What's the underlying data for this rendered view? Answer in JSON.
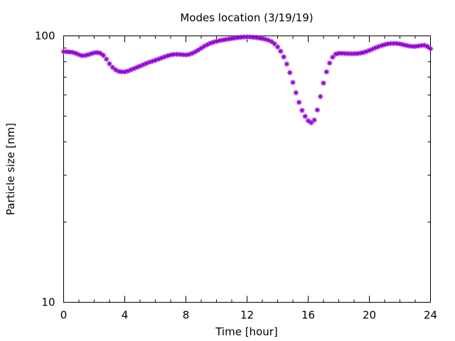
{
  "chart_data": {
    "type": "scatter",
    "title": "Modes location (3/19/19)",
    "xlabel": "Time [hour]",
    "ylabel": "Particle size [nm]",
    "xlim": [
      0,
      24
    ],
    "ylim": [
      10,
      100
    ],
    "yscale": "log",
    "x_ticks": [
      0,
      4,
      8,
      12,
      16,
      20,
      24
    ],
    "x_tick_labels": [
      "0",
      "4",
      "8",
      "12",
      "16",
      "20",
      "24"
    ],
    "y_ticks": [
      10,
      100
    ],
    "y_tick_labels": [
      "10",
      "100"
    ],
    "grid": false,
    "marker_color": "#9400d3",
    "marker": "asterisk",
    "series": [
      {
        "x": [
          0.0,
          0.2,
          0.4,
          0.6,
          0.8,
          1.0,
          1.2,
          1.4,
          1.6,
          1.8,
          2.0,
          2.2,
          2.4,
          2.6,
          2.8,
          3.0,
          3.2,
          3.4,
          3.6,
          3.8,
          4.0,
          4.2,
          4.4,
          4.6,
          4.8,
          5.0,
          5.2,
          5.4,
          5.6,
          5.8,
          6.0,
          6.2,
          6.4,
          6.6,
          6.8,
          7.0,
          7.2,
          7.4,
          7.6,
          7.8,
          8.0,
          8.2,
          8.4,
          8.6,
          8.8,
          9.0,
          9.2,
          9.4,
          9.6,
          9.8,
          10.0,
          10.2,
          10.4,
          10.6,
          10.8,
          11.0,
          11.2,
          11.4,
          11.6,
          11.8,
          12.0,
          12.2,
          12.4,
          12.6,
          12.8,
          13.0,
          13.2,
          13.4,
          13.6,
          13.8,
          14.0,
          14.2,
          14.4,
          14.6,
          14.8,
          15.0,
          15.2,
          15.4,
          15.6,
          15.8,
          16.0,
          16.2,
          16.4,
          16.6,
          16.8,
          17.0,
          17.2,
          17.4,
          17.6,
          17.8,
          18.0,
          18.2,
          18.4,
          18.6,
          18.8,
          19.0,
          19.2,
          19.4,
          19.6,
          19.8,
          20.0,
          20.2,
          20.4,
          20.6,
          20.8,
          21.0,
          21.2,
          21.4,
          21.6,
          21.8,
          22.0,
          22.2,
          22.4,
          22.6,
          22.8,
          23.0,
          23.2,
          23.4,
          23.6,
          23.8,
          24.0
        ],
        "y": [
          87.3,
          87.2,
          87.0,
          86.7,
          86.0,
          85.0,
          84.3,
          84.4,
          85.0,
          85.7,
          86.4,
          86.6,
          86.1,
          84.5,
          81.8,
          78.6,
          76.2,
          74.6,
          73.6,
          73.3,
          73.3,
          73.8,
          74.6,
          75.4,
          76.2,
          77.0,
          77.9,
          78.8,
          79.6,
          80.3,
          81.0,
          81.8,
          82.6,
          83.4,
          84.2,
          84.8,
          85.2,
          85.3,
          85.2,
          85.0,
          84.8,
          85.2,
          86.0,
          87.1,
          88.4,
          89.9,
          91.4,
          92.7,
          93.8,
          94.7,
          95.4,
          96.0,
          96.5,
          96.9,
          97.3,
          97.7,
          98.1,
          98.5,
          98.8,
          99.0,
          99.1,
          99.0,
          98.8,
          98.5,
          98.1,
          97.7,
          97.1,
          96.4,
          95.2,
          93.4,
          90.9,
          87.6,
          83.4,
          78.4,
          72.8,
          66.9,
          61.2,
          56.3,
          52.5,
          49.9,
          48.0,
          47.2,
          48.3,
          52.7,
          59.2,
          66.5,
          73.3,
          79.1,
          83.2,
          85.4,
          86.0,
          86.0,
          85.9,
          85.8,
          85.7,
          85.7,
          85.8,
          86.1,
          86.6,
          87.3,
          88.2,
          89.2,
          90.2,
          91.1,
          92.0,
          92.7,
          93.3,
          93.6,
          93.7,
          93.6,
          93.3,
          92.7,
          92.1,
          91.6,
          91.3,
          91.3,
          91.6,
          92.0,
          92.2,
          91.3,
          89.5
        ]
      }
    ]
  }
}
